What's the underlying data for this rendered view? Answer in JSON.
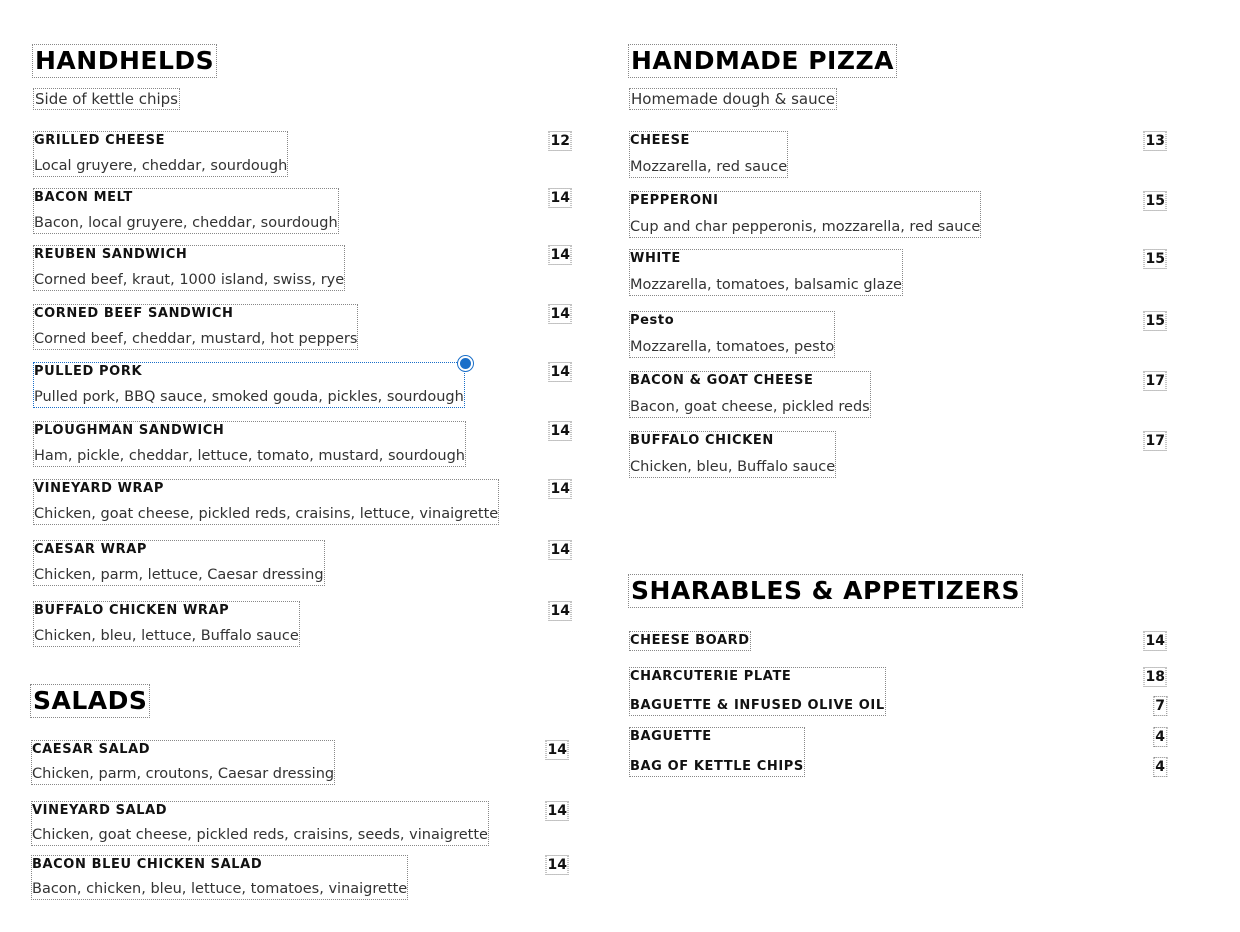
{
  "sections": [
    {
      "title": "HANDHELDS",
      "subtitle": "Side of kettle chips",
      "items": [
        {
          "name": "GRILLED CHEESE",
          "desc": "Local gruyere, cheddar, sourdough",
          "price": "12"
        },
        {
          "name": "BACON MELT",
          "desc": "Bacon, local gruyere, cheddar, sourdough",
          "price": "14"
        },
        {
          "name": "REUBEN SANDWICH",
          "desc": "Corned beef, kraut, 1000 island, swiss, rye",
          "price": "14"
        },
        {
          "name": "CORNED BEEF SANDWICH",
          "desc": "Corned beef, cheddar, mustard, hot peppers",
          "price": "14"
        },
        {
          "name": "PULLED PORK",
          "desc": "Pulled pork, BBQ sauce, smoked gouda, pickles, sourdough",
          "price": "14",
          "selected": true
        },
        {
          "name": "PLOUGHMAN SANDWICH",
          "desc": "Ham, pickle, cheddar, lettuce, tomato, mustard, sourdough",
          "price": "14"
        },
        {
          "name": "VINEYARD WRAP",
          "desc": "Chicken, goat cheese, pickled reds, craisins, lettuce, vinaigrette",
          "price": "14"
        },
        {
          "name": "CAESAR WRAP",
          "desc": "Chicken, parm, lettuce, Caesar dressing",
          "price": "14"
        },
        {
          "name": "BUFFALO CHICKEN WRAP",
          "desc": "Chicken, bleu, lettuce, Buffalo sauce",
          "price": "14"
        }
      ]
    },
    {
      "title": "SALADS",
      "items": [
        {
          "name": "CAESAR SALAD",
          "desc": "Chicken, parm, croutons, Caesar dressing",
          "price": "14"
        },
        {
          "name": "VINEYARD SALAD",
          "desc": "Chicken, goat cheese, pickled reds, craisins, seeds, vinaigrette",
          "price": "14"
        },
        {
          "name": "BACON BLEU CHICKEN SALAD",
          "desc": "Bacon, chicken, bleu, lettuce, tomatoes, vinaigrette",
          "price": "14"
        }
      ]
    },
    {
      "title": "HANDMADE PIZZA",
      "subtitle": "Homemade dough & sauce",
      "items": [
        {
          "name": "CHEESE",
          "desc": "Mozzarella, red sauce",
          "price": "13"
        },
        {
          "name": "PEPPERONI",
          "desc": "Cup and char pepperonis, mozzarella, red sauce",
          "price": "15"
        },
        {
          "name": "WHITE",
          "desc": "Mozzarella, tomatoes, balsamic glaze",
          "price": "15"
        },
        {
          "name": "Pesto",
          "desc": "Mozzarella, tomatoes, pesto",
          "price": "15"
        },
        {
          "name": "BACON & GOAT CHEESE",
          "desc": "Bacon, goat cheese, pickled reds",
          "price": "17"
        },
        {
          "name": "BUFFALO CHICKEN",
          "desc": "Chicken, bleu, Buffalo sauce",
          "price": "17"
        }
      ]
    },
    {
      "title": "SHARABLES & APPETIZERS",
      "items": [
        {
          "name": "CHEESE BOARD",
          "price": "14"
        },
        {
          "name": "CHARCUTERIE PLATE",
          "price": "18"
        },
        {
          "name": "BAGUETTE & INFUSED OLIVE OIL",
          "price": "7"
        },
        {
          "name": "BAGUETTE",
          "price": "4"
        },
        {
          "name": "BAG OF KETTLE CHIPS",
          "price": "4"
        }
      ]
    }
  ],
  "colors": {
    "selection": "#1a6fc9",
    "text": "#111111"
  }
}
